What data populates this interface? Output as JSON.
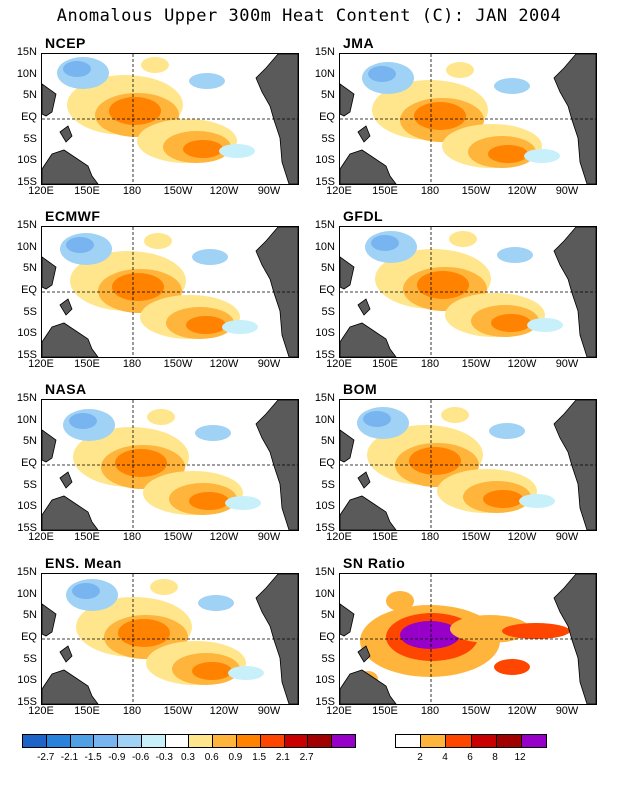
{
  "title": "Anomalous Upper 300m Heat Content (C): JAN 2004",
  "panels": [
    {
      "name": "NCEP"
    },
    {
      "name": "JMA"
    },
    {
      "name": "ECMWF"
    },
    {
      "name": "GFDL"
    },
    {
      "name": "NASA"
    },
    {
      "name": "BOM"
    },
    {
      "name": "ENS. Mean"
    },
    {
      "name": "SN Ratio"
    }
  ],
  "lat_labels": [
    "15N",
    "10N",
    "5N",
    "EQ",
    "5S",
    "10S",
    "15S"
  ],
  "lon_labels": [
    "120E",
    "150E",
    "180",
    "150W",
    "120W",
    "90W"
  ],
  "colorbar_left": {
    "labels": [
      "-2.7",
      "-2.1",
      "-1.5",
      "-0.9",
      "-0.6",
      "-0.3",
      "0.3",
      "0.6",
      "0.9",
      "1.5",
      "2.1",
      "2.7"
    ],
    "colors": [
      "#1e64c8",
      "#2882dc",
      "#50a0e6",
      "#78b4f0",
      "#a0d2f5",
      "#c8f0fa",
      "#ffffff",
      "#ffe68c",
      "#ffb43c",
      "#ff8200",
      "#ff4600",
      "#c80000",
      "#a00000",
      "#9600c8"
    ]
  },
  "colorbar_right": {
    "labels": [
      "2",
      "4",
      "6",
      "8",
      "12"
    ],
    "colors": [
      "#ffffff",
      "#ffb43c",
      "#ff4600",
      "#c80000",
      "#a00000",
      "#9600c8"
    ]
  }
}
